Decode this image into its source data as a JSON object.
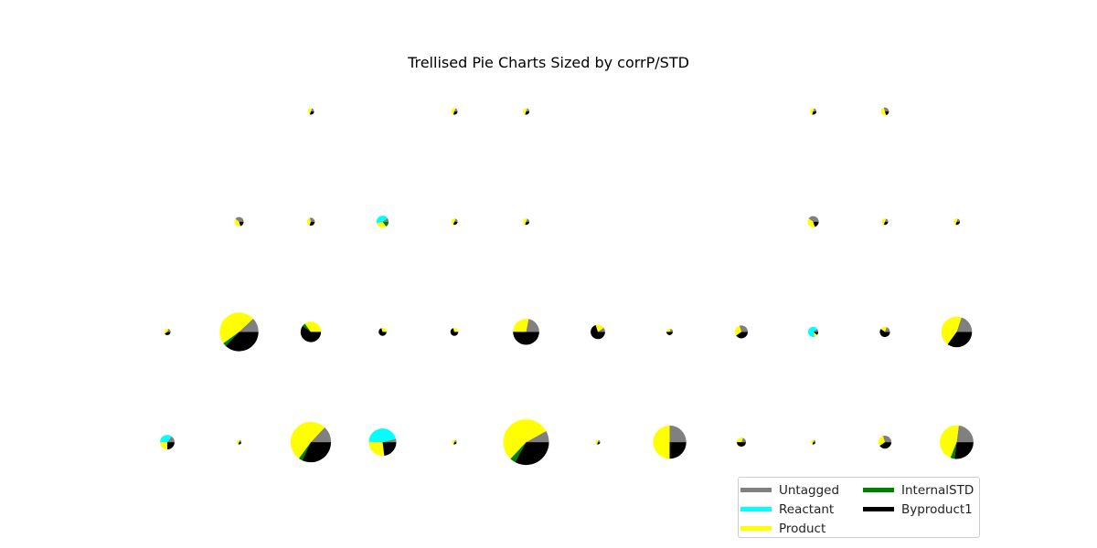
{
  "chart_data": {
    "type": "pie",
    "title": "Trellised Pie Charts Sized by corrP/STD",
    "categories": [
      "Untagged",
      "Reactant",
      "Product",
      "InternalSTD",
      "Byproduct1"
    ],
    "colors": {
      "Untagged": "#808080",
      "Reactant": "#00ffff",
      "Product": "#ffff00",
      "InternalSTD": "#008000",
      "Byproduct1": "#000000"
    },
    "grid_rows": 4,
    "grid_cols": 12,
    "legend_placement": "lower-right",
    "legend_columns": 2,
    "pies": [
      {
        "row": 0,
        "col": 2,
        "size": 0.02,
        "fractions": [
          0.2,
          0.0,
          0.5,
          0.0,
          0.3
        ]
      },
      {
        "row": 0,
        "col": 4,
        "size": 0.02,
        "fractions": [
          0.2,
          0.0,
          0.5,
          0.0,
          0.3
        ]
      },
      {
        "row": 0,
        "col": 5,
        "size": 0.02,
        "fractions": [
          0.2,
          0.0,
          0.5,
          0.0,
          0.3
        ]
      },
      {
        "row": 0,
        "col": 9,
        "size": 0.02,
        "fractions": [
          0.2,
          0.0,
          0.5,
          0.0,
          0.3
        ]
      },
      {
        "row": 0,
        "col": 10,
        "size": 0.03,
        "fractions": [
          0.3,
          0.0,
          0.5,
          0.0,
          0.2
        ]
      },
      {
        "row": 1,
        "col": 1,
        "size": 0.04,
        "fractions": [
          0.4,
          0.0,
          0.4,
          0.0,
          0.2
        ]
      },
      {
        "row": 1,
        "col": 2,
        "size": 0.03,
        "fractions": [
          0.3,
          0.0,
          0.4,
          0.0,
          0.3
        ]
      },
      {
        "row": 1,
        "col": 3,
        "size": 0.07,
        "fractions": [
          0.1,
          0.45,
          0.3,
          0.15,
          0.0
        ]
      },
      {
        "row": 1,
        "col": 4,
        "size": 0.02,
        "fractions": [
          0.2,
          0.0,
          0.5,
          0.0,
          0.3
        ]
      },
      {
        "row": 1,
        "col": 5,
        "size": 0.02,
        "fractions": [
          0.2,
          0.0,
          0.5,
          0.0,
          0.3
        ]
      },
      {
        "row": 1,
        "col": 9,
        "size": 0.06,
        "fractions": [
          0.4,
          0.0,
          0.4,
          0.0,
          0.2
        ]
      },
      {
        "row": 1,
        "col": 10,
        "size": 0.02,
        "fractions": [
          0.2,
          0.0,
          0.5,
          0.0,
          0.3
        ]
      },
      {
        "row": 1,
        "col": 11,
        "size": 0.02,
        "fractions": [
          0.2,
          0.0,
          0.5,
          0.0,
          0.3
        ]
      },
      {
        "row": 2,
        "col": 0,
        "size": 0.02,
        "fractions": [
          0.2,
          0.0,
          0.4,
          0.0,
          0.4
        ]
      },
      {
        "row": 2,
        "col": 1,
        "size": 0.72,
        "fractions": [
          0.12,
          0.0,
          0.48,
          0.03,
          0.37
        ]
      },
      {
        "row": 2,
        "col": 2,
        "size": 0.2,
        "fractions": [
          0.0,
          0.0,
          0.35,
          0.05,
          0.6
        ]
      },
      {
        "row": 2,
        "col": 3,
        "size": 0.03,
        "fractions": [
          0.0,
          0.0,
          0.3,
          0.0,
          0.7
        ]
      },
      {
        "row": 2,
        "col": 4,
        "size": 0.03,
        "fractions": [
          0.0,
          0.0,
          0.3,
          0.0,
          0.7
        ]
      },
      {
        "row": 2,
        "col": 5,
        "size": 0.33,
        "fractions": [
          0.22,
          0.0,
          0.28,
          0.0,
          0.5
        ]
      },
      {
        "row": 2,
        "col": 6,
        "size": 0.1,
        "fractions": [
          0.1,
          0.0,
          0.2,
          0.0,
          0.7
        ]
      },
      {
        "row": 2,
        "col": 7,
        "size": 0.02,
        "fractions": [
          0.2,
          0.0,
          0.3,
          0.0,
          0.5
        ]
      },
      {
        "row": 2,
        "col": 8,
        "size": 0.08,
        "fractions": [
          0.3,
          0.0,
          0.3,
          0.0,
          0.4
        ]
      },
      {
        "row": 2,
        "col": 9,
        "size": 0.05,
        "fractions": [
          0.1,
          0.7,
          0.1,
          0.0,
          0.1
        ]
      },
      {
        "row": 2,
        "col": 10,
        "size": 0.05,
        "fractions": [
          0.2,
          0.0,
          0.2,
          0.0,
          0.6
        ]
      },
      {
        "row": 2,
        "col": 11,
        "size": 0.45,
        "fractions": [
          0.2,
          0.0,
          0.45,
          0.0,
          0.35
        ]
      },
      {
        "row": 3,
        "col": 0,
        "size": 0.1,
        "fractions": [
          0.15,
          0.35,
          0.25,
          0.0,
          0.25
        ]
      },
      {
        "row": 3,
        "col": 1,
        "size": 0.01,
        "fractions": [
          0.2,
          0.0,
          0.5,
          0.0,
          0.3
        ]
      },
      {
        "row": 3,
        "col": 2,
        "size": 0.78,
        "fractions": [
          0.13,
          0.0,
          0.52,
          0.03,
          0.32
        ]
      },
      {
        "row": 3,
        "col": 3,
        "size": 0.36,
        "fractions": [
          0.04,
          0.46,
          0.27,
          0.0,
          0.23
        ]
      },
      {
        "row": 3,
        "col": 4,
        "size": 0.01,
        "fractions": [
          0.2,
          0.0,
          0.5,
          0.0,
          0.3
        ]
      },
      {
        "row": 3,
        "col": 5,
        "size": 1.0,
        "fractions": [
          0.08,
          0.0,
          0.55,
          0.04,
          0.33
        ]
      },
      {
        "row": 3,
        "col": 6,
        "size": 0.01,
        "fractions": [
          0.2,
          0.0,
          0.5,
          0.0,
          0.3
        ]
      },
      {
        "row": 3,
        "col": 7,
        "size": 0.53,
        "fractions": [
          0.25,
          0.0,
          0.5,
          0.0,
          0.25
        ]
      },
      {
        "row": 3,
        "col": 8,
        "size": 0.04,
        "fractions": [
          0.2,
          0.0,
          0.3,
          0.0,
          0.5
        ]
      },
      {
        "row": 3,
        "col": 9,
        "size": 0.01,
        "fractions": [
          0.2,
          0.0,
          0.5,
          0.0,
          0.3
        ]
      },
      {
        "row": 3,
        "col": 10,
        "size": 0.08,
        "fractions": [
          0.3,
          0.0,
          0.3,
          0.0,
          0.4
        ]
      },
      {
        "row": 3,
        "col": 11,
        "size": 0.54,
        "fractions": [
          0.23,
          0.0,
          0.46,
          0.04,
          0.27
        ]
      }
    ]
  }
}
